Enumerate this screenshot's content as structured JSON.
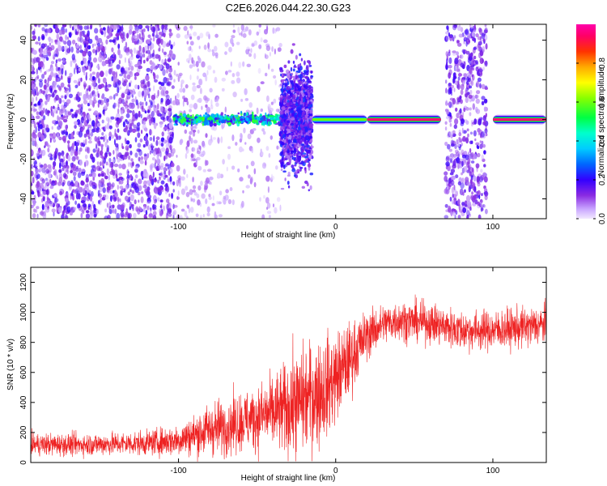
{
  "page_title": "C2E6.2026.044.22.30.G23",
  "colors": {
    "snr_line": "#ee2222",
    "axis": "#000000",
    "background": "#ffffff"
  },
  "chart_data": [
    {
      "type": "heatmap",
      "title": "C2E6.2026.044.22.30.G23",
      "xlabel": "Height of straight line (km)",
      "ylabel": "Frequency (Hz)",
      "xlim": [
        -194,
        134
      ],
      "ylim": [
        -50,
        48
      ],
      "x_ticks": [
        -100,
        0,
        100
      ],
      "x_tick_labels": [
        "-100",
        "0",
        "100"
      ],
      "y_ticks": [
        -40,
        -20,
        0,
        20,
        40
      ],
      "y_tick_labels": [
        "-40",
        "-20",
        "0",
        "20",
        "40"
      ],
      "colorbar": {
        "label": "Normalized spectral amplitude",
        "range": [
          0,
          1
        ],
        "ticks": [
          0.0,
          0.2,
          0.4,
          0.6,
          0.8
        ],
        "tick_labels": [
          "0.0",
          "0.2",
          "0.4",
          "0.6",
          "0.8"
        ]
      },
      "regions": [
        {
          "x_range": [
            -194,
            -103
          ],
          "kind": "noise",
          "density": "high",
          "amplitude": 0.15
        },
        {
          "x_range": [
            -103,
            -80
          ],
          "kind": "noise",
          "density": "sparse",
          "amplitude": 0.08
        },
        {
          "x_range": [
            -80,
            -35
          ],
          "kind": "noise",
          "density": "very sparse",
          "amplitude": 0.06
        },
        {
          "x_range": [
            -103,
            -33
          ],
          "kind": "band",
          "center_freq": 0,
          "width_hz": 6,
          "amplitude": 0.45
        },
        {
          "x_range": [
            -35,
            -15
          ],
          "kind": "band",
          "center_freq": 0,
          "width_hz": 60,
          "amplitude": 0.2
        },
        {
          "x_range": [
            -15,
            20
          ],
          "kind": "carrier",
          "center_freq": 0,
          "amplitude": 0.6
        },
        {
          "x_range": [
            20,
            67
          ],
          "kind": "carrier",
          "center_freq": 0,
          "amplitude": 0.95
        },
        {
          "x_range": [
            70,
            96
          ],
          "kind": "noise",
          "density": "high",
          "amplitude": 0.15
        },
        {
          "x_range": [
            100,
            134
          ],
          "kind": "carrier",
          "center_freq": 0,
          "amplitude": 0.95
        }
      ]
    },
    {
      "type": "line",
      "xlabel": "Height of straight line (km)",
      "ylabel": "SNR (10 * v/v)",
      "xlim": [
        -194,
        134
      ],
      "ylim": [
        0,
        1300
      ],
      "x_ticks": [
        -100,
        0,
        100
      ],
      "x_tick_labels": [
        "-100",
        "0",
        "100"
      ],
      "y_ticks": [
        0,
        200,
        400,
        600,
        800,
        1000,
        1200
      ],
      "y_tick_labels": [
        "0",
        "200",
        "400",
        "600",
        "800",
        "1000",
        "1200"
      ],
      "series": [
        {
          "name": "SNR",
          "trend_x": [
            -194,
            -160,
            -120,
            -100,
            -80,
            -60,
            -40,
            -30,
            -20,
            -10,
            0,
            10,
            20,
            30,
            40,
            60,
            80,
            100,
            120,
            134
          ],
          "trend_y": [
            120,
            120,
            130,
            150,
            220,
            270,
            330,
            360,
            420,
            470,
            560,
            700,
            850,
            920,
            950,
            930,
            880,
            880,
            900,
            920
          ],
          "noise_y": [
            55,
            55,
            60,
            80,
            130,
            150,
            190,
            240,
            270,
            270,
            230,
            180,
            120,
            100,
            100,
            100,
            100,
            100,
            100,
            100
          ]
        }
      ]
    }
  ]
}
